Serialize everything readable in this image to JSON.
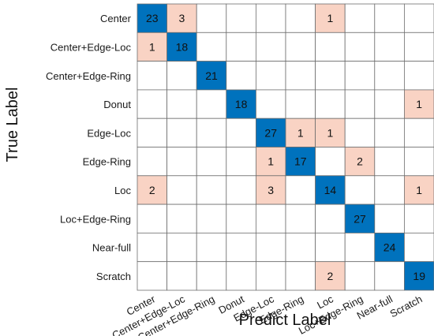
{
  "chart_data": {
    "type": "heatmap",
    "xlabel": "Predict Label",
    "ylabel": "True Label",
    "row_labels": [
      "Center",
      "Center+Edge-Loc",
      "Center+Edge-Ring",
      "Donut",
      "Edge-Loc",
      "Edge-Ring",
      "Loc",
      "Loc+Edge-Ring",
      "Near-full",
      "Scratch"
    ],
    "col_labels": [
      "Center",
      "Center+Edge-Loc",
      "Center+Edge-Ring",
      "Donut",
      "Edge-Loc",
      "Edge-Ring",
      "Loc",
      "Loc+Edge-Ring",
      "Near-full",
      "Scratch"
    ],
    "matrix": [
      [
        23,
        3,
        0,
        0,
        0,
        0,
        1,
        0,
        0,
        0
      ],
      [
        1,
        18,
        0,
        0,
        0,
        0,
        0,
        0,
        0,
        0
      ],
      [
        0,
        0,
        21,
        0,
        0,
        0,
        0,
        0,
        0,
        0
      ],
      [
        0,
        0,
        0,
        18,
        0,
        0,
        0,
        0,
        0,
        1
      ],
      [
        0,
        0,
        0,
        0,
        27,
        1,
        1,
        0,
        0,
        0
      ],
      [
        0,
        0,
        0,
        0,
        1,
        17,
        0,
        2,
        0,
        0
      ],
      [
        2,
        0,
        0,
        0,
        3,
        0,
        14,
        0,
        0,
        1
      ],
      [
        0,
        0,
        0,
        0,
        0,
        0,
        0,
        27,
        0,
        0
      ],
      [
        0,
        0,
        0,
        0,
        0,
        0,
        0,
        0,
        24,
        0
      ],
      [
        0,
        0,
        0,
        0,
        0,
        0,
        2,
        0,
        0,
        19
      ]
    ],
    "colors": {
      "diagonal": "#0072bd",
      "off_diagonal": "#f9d3c4",
      "empty": "#ffffff",
      "grid": "#6e6e6e"
    }
  }
}
